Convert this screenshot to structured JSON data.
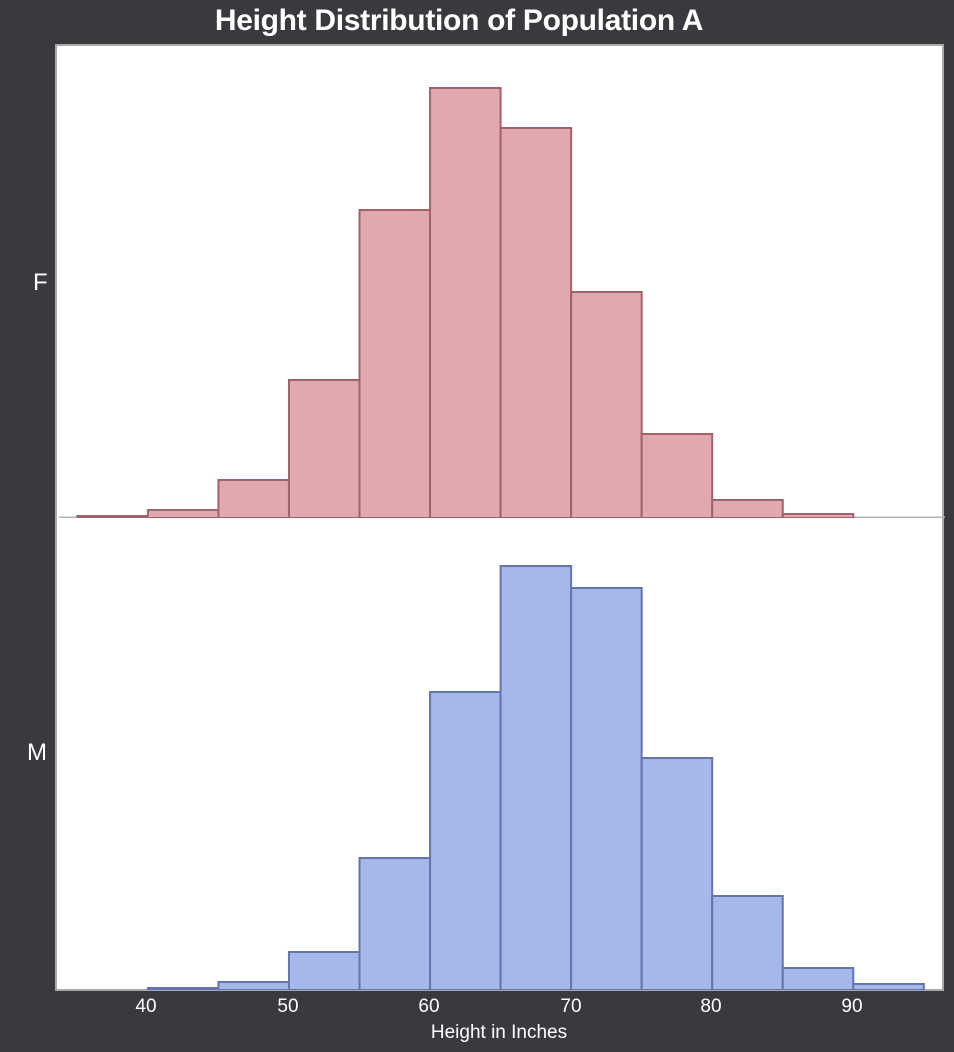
{
  "title": "Height Distribution of Population A",
  "colors": {
    "background": "#393a3e",
    "female_fill": "#e1a9ad",
    "female_edge": "#a0636b",
    "male_fill": "#a6b7ea",
    "male_edge": "#6674ad",
    "divider": "#b4b4b4"
  },
  "facets": {
    "top": "F",
    "bottom": "M"
  },
  "xaxis": {
    "label": "Height in Inches",
    "ticks": [
      "40",
      "50",
      "60",
      "70",
      "80",
      "90"
    ]
  },
  "chart_data": {
    "type": "bar",
    "title": "Height Distribution of Population A",
    "xlabel": "Height in Inches",
    "ylabel": "",
    "xlim": [
      33.7,
      96.5
    ],
    "bin_width": 5,
    "grid": false,
    "layout": "faceted rows (F on top, M on bottom), shared x-axis, no y-axis ticks",
    "xticks": [
      40,
      50,
      60,
      70,
      80,
      90
    ],
    "series": [
      {
        "name": "F",
        "color": "#e1a9ad",
        "bins": [
          [
            35,
            40
          ],
          [
            40,
            45
          ],
          [
            45,
            50
          ],
          [
            50,
            55
          ],
          [
            55,
            60
          ],
          [
            60,
            65
          ],
          [
            65,
            70
          ],
          [
            70,
            75
          ],
          [
            75,
            80
          ],
          [
            80,
            85
          ],
          [
            85,
            90
          ]
        ],
        "values": [
          2,
          8,
          38,
          138,
          308,
          430,
          390,
          226,
          84,
          18,
          4
        ]
      },
      {
        "name": "M",
        "color": "#a6b7ea",
        "bins": [
          [
            40,
            45
          ],
          [
            45,
            50
          ],
          [
            50,
            55
          ],
          [
            55,
            60
          ],
          [
            60,
            65
          ],
          [
            65,
            70
          ],
          [
            70,
            75
          ],
          [
            75,
            80
          ],
          [
            80,
            85
          ],
          [
            85,
            90
          ],
          [
            90,
            95
          ]
        ],
        "values": [
          2,
          8,
          38,
          132,
          298,
          424,
          402,
          232,
          94,
          22,
          6
        ]
      }
    ],
    "ylim": [
      0,
      472
    ]
  }
}
